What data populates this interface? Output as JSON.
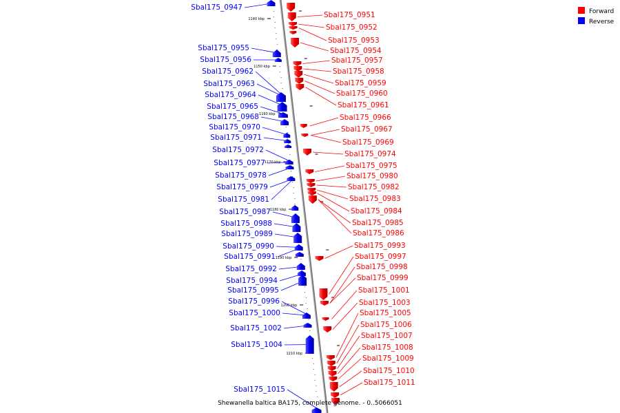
{
  "legend": {
    "forward_label": "Forward",
    "reverse_label": "Reverse",
    "forward_color": "#ff0000",
    "reverse_color": "#0000ff"
  },
  "caption": "Shewanella baltica BA175, complete genome. - 0..5066051",
  "ticks": [
    "1140 kbp",
    "1150 kbp",
    "1160 kbp",
    "1170 kbp",
    "1180 kbp",
    "1190 kbp",
    "1200 kbp",
    "1210 kbp"
  ],
  "reverse_labels": [
    "Sbal175_0947",
    "Sbal175_0955",
    "Sbal175_0956",
    "Sbal175_0962",
    "Sbal175_0963",
    "Sbal175_0964",
    "Sbal175_0965",
    "Sbal175_0968",
    "Sbal175_0970",
    "Sbal175_0971",
    "Sbal175_0972",
    "Sbal175_0977",
    "Sbal175_0978",
    "Sbal175_0979",
    "Sbal175_0981",
    "Sbal175_0987",
    "Sbal175_0988",
    "Sbal175_0989",
    "Sbal175_0990",
    "Sbal175_0991",
    "Sbal175_0992",
    "Sbal175_0994",
    "Sbal175_0995",
    "Sbal175_0996",
    "Sbal175_1000",
    "Sbal175_1002",
    "Sbal175_1004",
    "Sbal175_1015"
  ],
  "forward_labels": [
    "Sbal175_0951",
    "Sbal175_0952",
    "Sbal175_0953",
    "Sbal175_0954",
    "Sbal175_0957",
    "Sbal175_0958",
    "Sbal175_0959",
    "Sbal175_0960",
    "Sbal175_0961",
    "Sbal175_0966",
    "Sbal175_0967",
    "Sbal175_0969",
    "Sbal175_0974",
    "Sbal175_0975",
    "Sbal175_0980",
    "Sbal175_0982",
    "Sbal175_0983",
    "Sbal175_0984",
    "Sbal175_0985",
    "Sbal175_0986",
    "Sbal175_0993",
    "Sbal175_0997",
    "Sbal175_0998",
    "Sbal175_0999",
    "Sbal175_1001",
    "Sbal175_1003",
    "Sbal175_1005",
    "Sbal175_1006",
    "Sbal175_1007",
    "Sbal175_1008",
    "Sbal175_1009",
    "Sbal175_1010",
    "Sbal175_1011"
  ]
}
